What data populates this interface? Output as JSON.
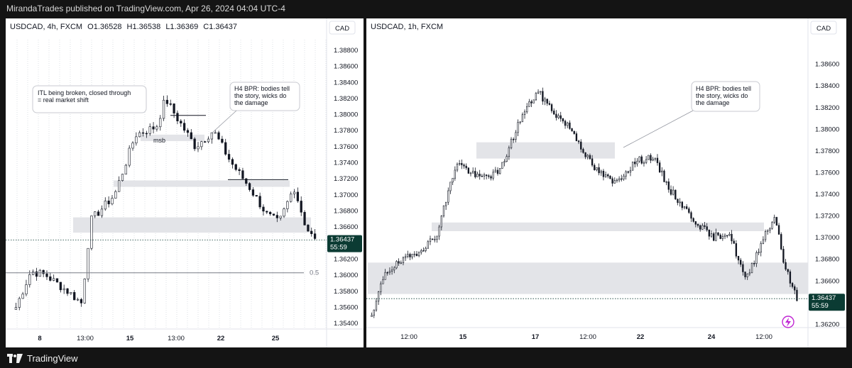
{
  "header": {
    "publisher_line": "MirandaTrades published on TradingView.com, Apr 26, 2024 04:04 UTC-4"
  },
  "footer": {
    "brand": "TradingView"
  },
  "colors": {
    "bull": "#ffffff",
    "bear": "#131722",
    "stroke": "#131722",
    "zone": "#e3e4e8",
    "price_badge": "#0b3b33",
    "accent": "#c026d3"
  },
  "chart_data": [
    {
      "type": "candlestick",
      "symbol": "USDCAD, 4h, FXCM",
      "ohlc": {
        "open": "O1.36528",
        "high": "H1.36538",
        "low": "L1.36369",
        "close": "C1.36437"
      },
      "currency": "CAD",
      "ylim": [
        1.3533,
        1.3895
      ],
      "y_ticks": [
        "1.38800",
        "1.38600",
        "1.38400",
        "1.38200",
        "1.38000",
        "1.37800",
        "1.37600",
        "1.37400",
        "1.37200",
        "1.37000",
        "1.36800",
        "1.36600",
        "1.36400",
        "1.36200",
        "1.36000",
        "1.35800",
        "1.35600",
        "1.35400"
      ],
      "x_ticks": [
        "8",
        "13:00",
        "15",
        "13:00",
        "22",
        "25"
      ],
      "last_price": "1.36437",
      "countdown": "55:59",
      "level_label": "0.5",
      "level_value": 1.3603,
      "annotations": [
        {
          "text": [
            "ITL being broken, closed through",
            "= real market shift"
          ]
        },
        {
          "text": [
            "H4 BPR: bodies tell",
            "the story, wicks do",
            "the damage"
          ]
        },
        {
          "text": [
            "msb"
          ]
        }
      ],
      "zones": [
        {
          "from": 1.3767,
          "to": 1.3775
        },
        {
          "from": 1.371,
          "to": 1.3718
        },
        {
          "from": 1.3653,
          "to": 1.3672
        }
      ]
    },
    {
      "type": "candlestick",
      "symbol": "USDCAD, 1h, FXCM",
      "currency": "CAD",
      "ylim": [
        1.3617,
        1.3884
      ],
      "y_ticks": [
        "1.38600",
        "1.38400",
        "1.38200",
        "1.38000",
        "1.37800",
        "1.37600",
        "1.37400",
        "1.37200",
        "1.37000",
        "1.36800",
        "1.36600",
        "1.36400",
        "1.36200"
      ],
      "x_ticks": [
        "12:00",
        "15",
        "17",
        "12:00",
        "22",
        "24",
        "12:00"
      ],
      "last_price": "1.36437",
      "countdown": "55:59",
      "annotations": [
        {
          "text": [
            "H4 BPR: bodies tell",
            "the story, wicks do",
            "the damage"
          ]
        }
      ],
      "zones": [
        {
          "from": 1.3773,
          "to": 1.3788
        },
        {
          "from": 1.3706,
          "to": 1.3714
        },
        {
          "from": 1.3648,
          "to": 1.3677
        }
      ]
    }
  ]
}
